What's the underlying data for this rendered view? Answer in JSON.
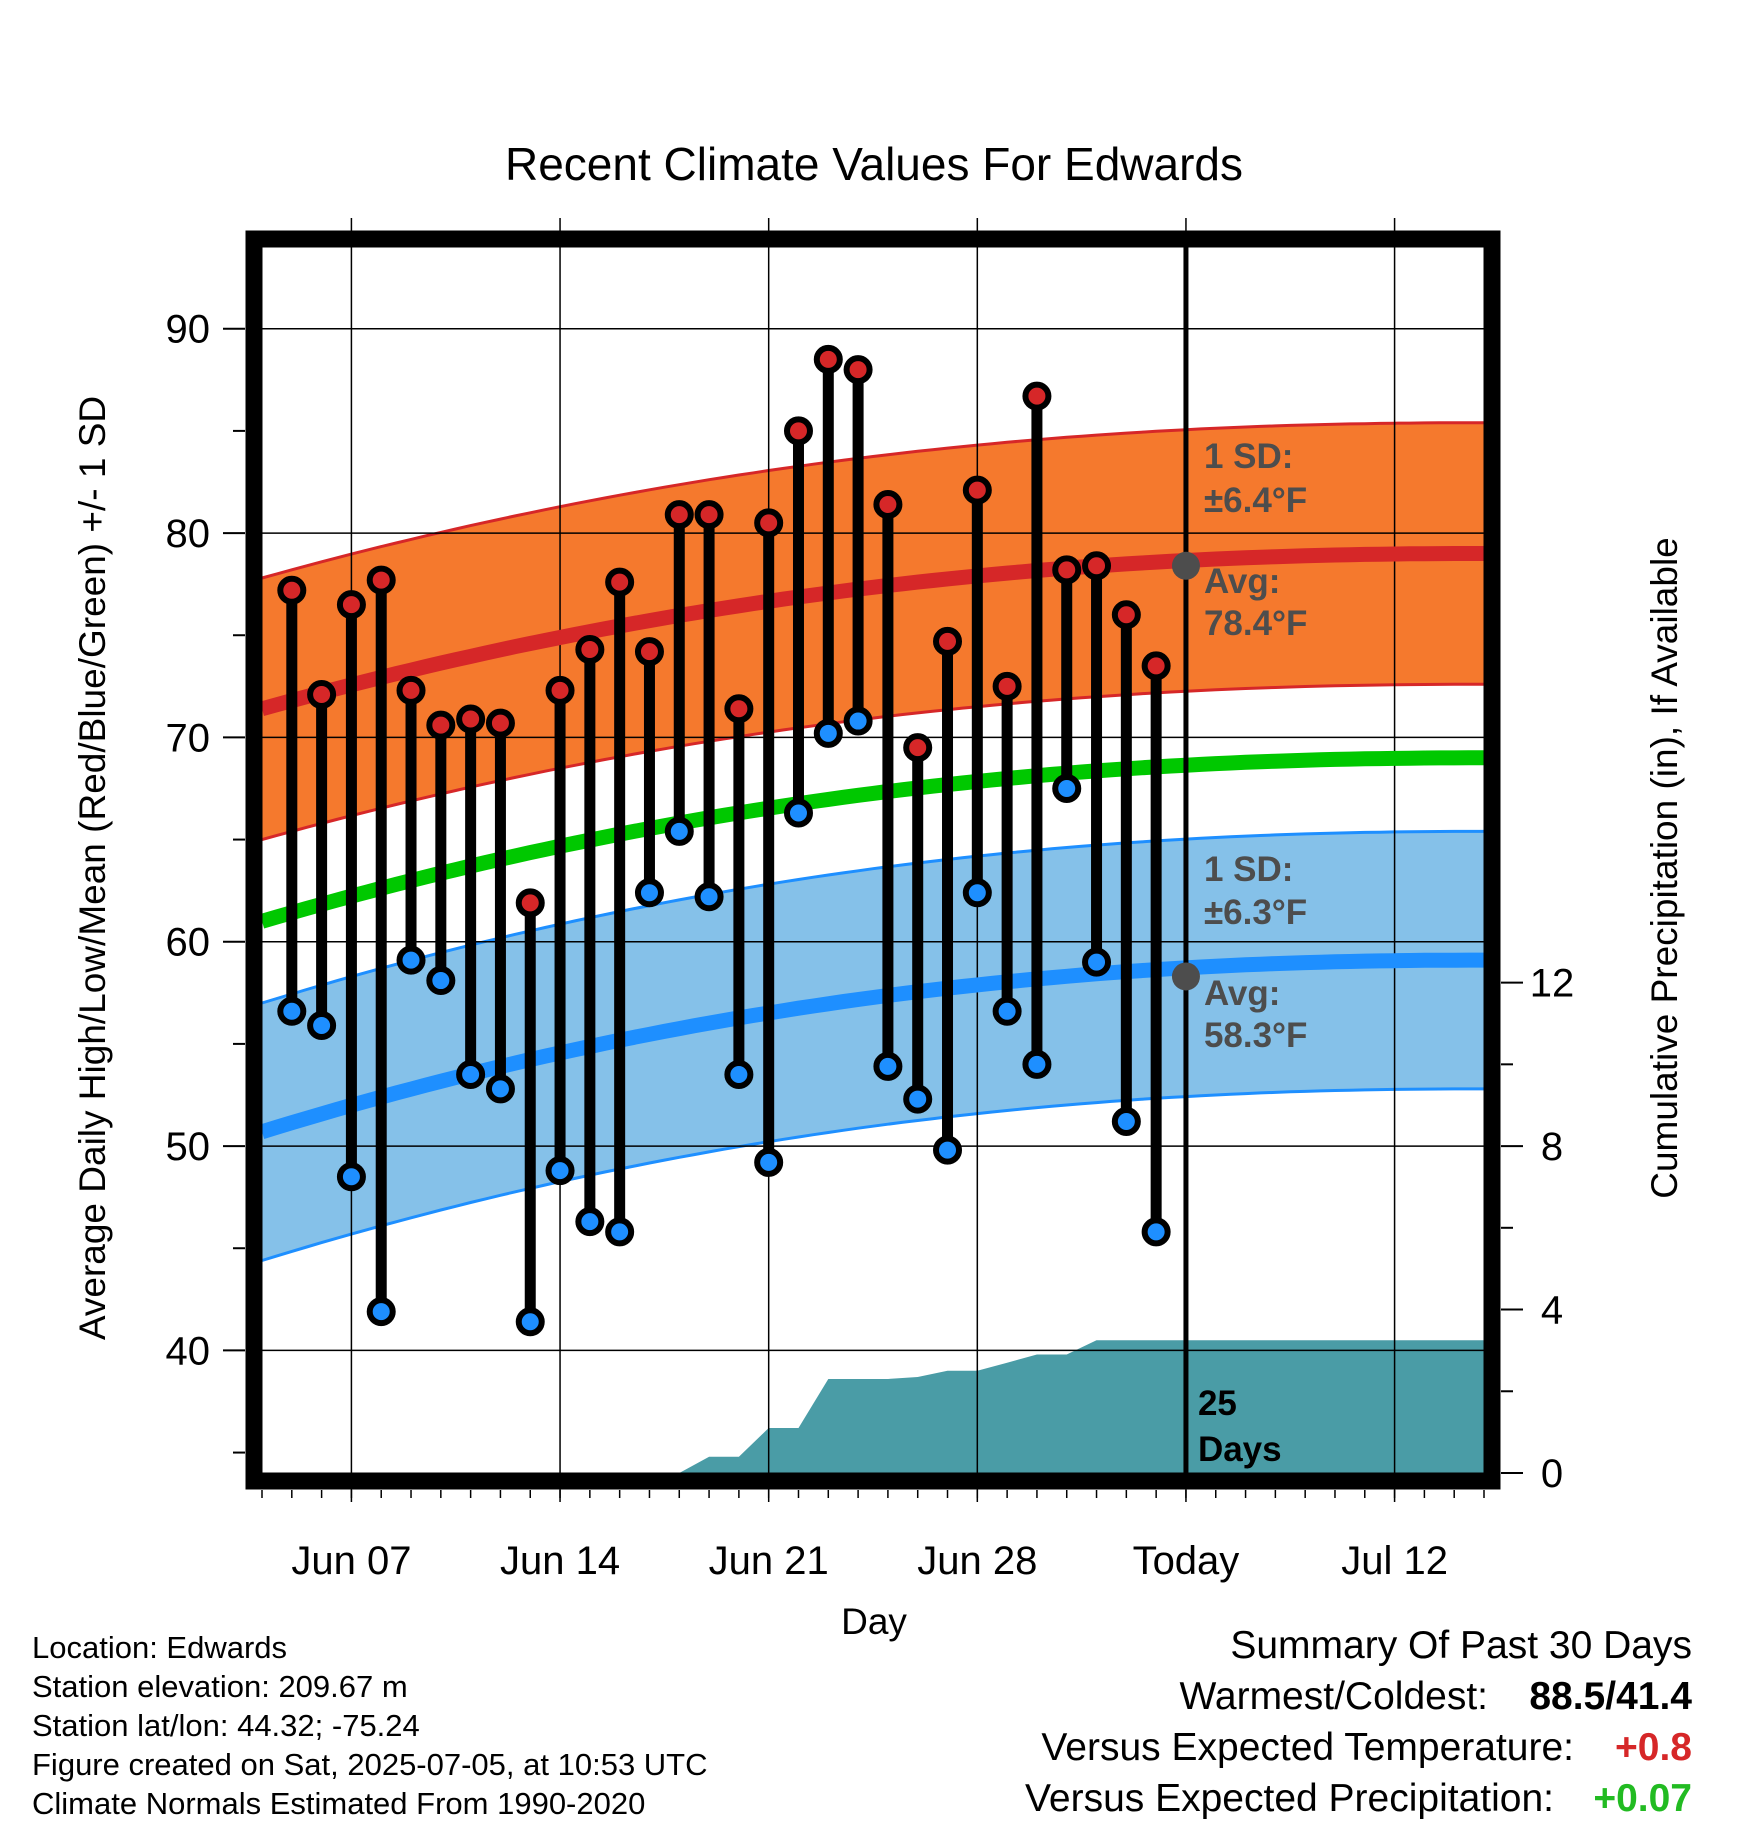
{
  "chart_data": {
    "type": "line",
    "title": "Recent Climate Values For Edwards",
    "xlabel": "Day",
    "ylabel_left": "Average Daily High/Low/Mean (Red/Blue/Green) +/- 1 SD",
    "ylabel_right": "Cumulative Precipitation (in), If Available",
    "y_left_range": [
      34,
      94
    ],
    "y_right_range": [
      0,
      30
    ],
    "x_range_days": [
      "Jun 04",
      "Jul 15"
    ],
    "grid": true,
    "x_ticks": [
      {
        "date": "Jun 07",
        "label": "Jun 07"
      },
      {
        "date": "Jun 14",
        "label": "Jun 14"
      },
      {
        "date": "Jun 21",
        "label": "Jun 21"
      },
      {
        "date": "Jun 28",
        "label": "Jun 28"
      },
      {
        "date": "Jul 05",
        "label": "Today"
      },
      {
        "date": "Jul 12",
        "label": "Jul 12"
      }
    ],
    "y_left_ticks": [
      40,
      50,
      60,
      70,
      80,
      90
    ],
    "y_right_ticks": [
      0,
      4,
      8,
      12
    ],
    "daily_observed": {
      "dates": [
        "Jun 05",
        "Jun 06",
        "Jun 07",
        "Jun 08",
        "Jun 09",
        "Jun 10",
        "Jun 11",
        "Jun 12",
        "Jun 13",
        "Jun 14",
        "Jun 15",
        "Jun 16",
        "Jun 17",
        "Jun 18",
        "Jun 19",
        "Jun 20",
        "Jun 21",
        "Jun 22",
        "Jun 23",
        "Jun 24",
        "Jun 25",
        "Jun 26",
        "Jun 27",
        "Jun 28",
        "Jun 29",
        "Jun 30",
        "Jul 01",
        "Jul 02",
        "Jul 03",
        "Jul 04"
      ],
      "highs": [
        77.2,
        72.1,
        76.5,
        77.7,
        72.3,
        70.6,
        70.9,
        70.7,
        61.9,
        72.3,
        74.3,
        77.6,
        74.2,
        80.9,
        80.9,
        71.4,
        80.5,
        85.0,
        88.5,
        88.0,
        81.4,
        69.5,
        74.7,
        82.1,
        72.5,
        86.7,
        78.2,
        78.4,
        76.0,
        73.5
      ],
      "lows": [
        56.6,
        55.9,
        48.5,
        41.9,
        59.1,
        58.1,
        53.5,
        52.8,
        41.4,
        48.8,
        46.3,
        45.8,
        62.4,
        65.4,
        62.2,
        53.5,
        49.2,
        66.3,
        70.2,
        70.8,
        53.9,
        52.3,
        49.8,
        62.4,
        56.6,
        54.0,
        67.5,
        59.0,
        51.2,
        45.8
      ]
    },
    "normals": {
      "dates": [
        "Jun 04",
        "Jul 15"
      ],
      "avg_high": [
        71.4,
        79.0
      ],
      "avg_low": [
        50.7,
        59.1
      ],
      "avg_mean": [
        61.0,
        69.0
      ],
      "high_sd": 6.4,
      "low_sd": 6.3
    },
    "precip_cumulative": {
      "dates": [
        "Jun 18",
        "Jun 19",
        "Jun 20",
        "Jun 21",
        "Jun 22",
        "Jun 23",
        "Jun 24",
        "Jun 25",
        "Jun 26",
        "Jun 27",
        "Jun 28",
        "Jun 29",
        "Jun 30",
        "Jul 01",
        "Jul 02",
        "Jul 03",
        "Jul 04",
        "Jul 15"
      ],
      "values": [
        0,
        0.4,
        0.4,
        1.1,
        1.1,
        2.3,
        2.3,
        2.3,
        2.35,
        2.5,
        2.5,
        2.7,
        2.9,
        2.9,
        3.25,
        3.25,
        3.25,
        3.25
      ]
    },
    "annotations": {
      "high_sd_label": "1 SD:",
      "high_sd_value": "±6.4°F",
      "high_avg_label": "Avg:",
      "high_avg_value": "78.4°F",
      "low_sd_label": "1 SD:",
      "low_sd_value": "±6.3°F",
      "low_avg_label": "Avg:",
      "low_avg_value": "58.3°F",
      "today_avg_high": 78.4,
      "today_avg_low": 58.3,
      "days_count": "25",
      "days_label": "Days"
    },
    "colors": {
      "high_band": "#f5792d",
      "high_line": "#d62728",
      "low_band": "#85c1e9",
      "low_line": "#1e8fff",
      "mean_line": "#00c800",
      "precip": "#4a9ca6",
      "annotation": "#4d4d4d"
    }
  },
  "info": {
    "location": "Location: Edwards",
    "elevation": "Station elevation: 209.67 m",
    "latlon": "Station lat/lon: 44.32; -75.24",
    "created": "Figure created on Sat, 2025-07-05, at 10:53 UTC",
    "normals": "Climate Normals Estimated From 1990-2020"
  },
  "summary": {
    "title": "Summary Of Past 30 Days",
    "warm_cold_label": "Warmest/Coldest:",
    "warm_cold_value": "88.5/41.4",
    "temp_label": "Versus Expected Temperature:",
    "temp_value": "+0.8",
    "precip_label": "Versus Expected Precipitation:",
    "precip_value": "+0.07"
  }
}
